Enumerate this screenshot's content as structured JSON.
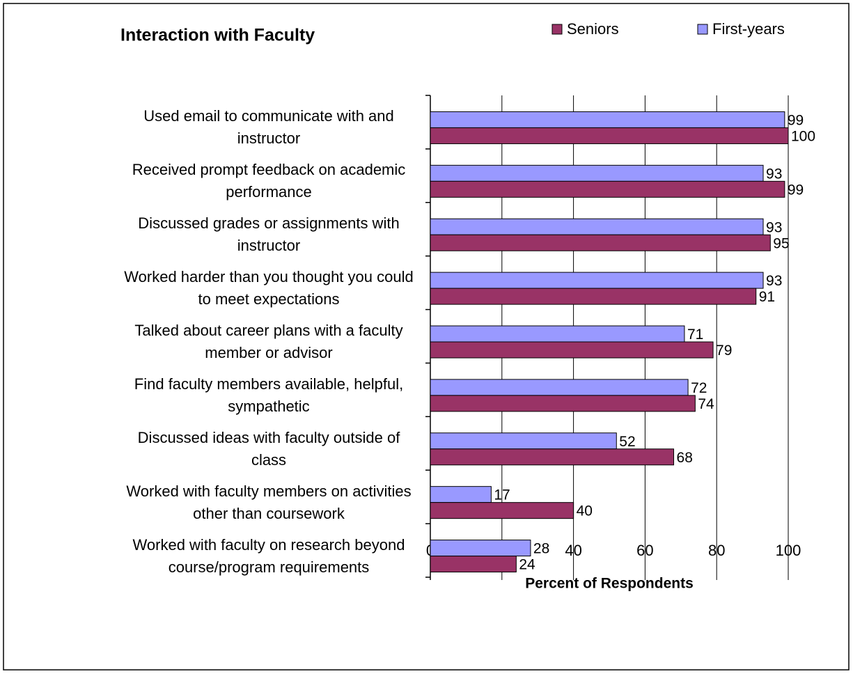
{
  "chart_data": {
    "type": "barh",
    "title": "Interaction with Faculty",
    "xlabel": "Percent of Respondents",
    "categories": [
      "Used email to communicate with and\ninstructor",
      "Received prompt feedback on academic\nperformance",
      "Discussed grades or assignments with\ninstructor",
      "Worked harder than you thought you could\nto meet expectations",
      "Talked about career plans with a faculty\nmember or advisor",
      "Find faculty members available, helpful,\nsympathetic",
      "Discussed ideas with faculty outside of\nclass",
      "Worked with faculty members on activities\nother than coursework",
      "Worked with faculty on research beyond\ncourse/program requirements"
    ],
    "series": [
      {
        "name": "Seniors",
        "color": "#993366",
        "values": [
          100,
          99,
          95,
          91,
          79,
          74,
          68,
          40,
          24
        ]
      },
      {
        "name": "First-years",
        "color": "#9999ff",
        "values": [
          99,
          93,
          93,
          93,
          71,
          72,
          52,
          17,
          28
        ]
      }
    ],
    "xlim": [
      0,
      100
    ],
    "xticks": [
      0,
      20,
      40,
      60,
      80,
      100
    ],
    "grid": true,
    "legend": "top"
  }
}
